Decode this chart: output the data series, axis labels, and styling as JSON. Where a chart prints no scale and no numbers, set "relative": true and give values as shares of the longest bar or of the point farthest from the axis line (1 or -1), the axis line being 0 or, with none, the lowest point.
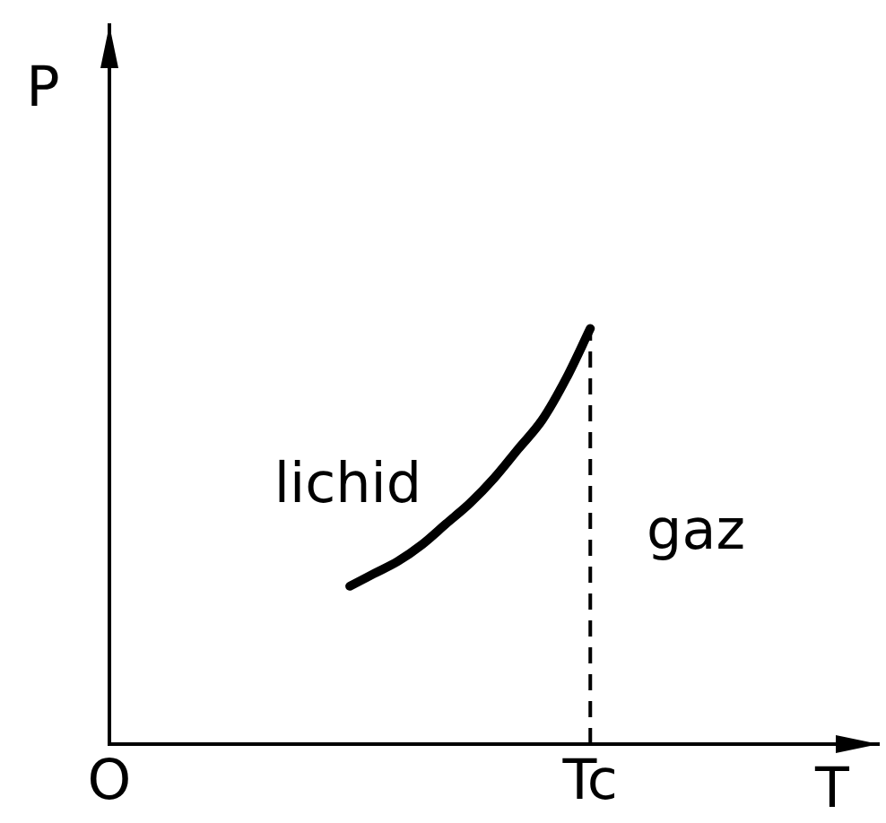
{
  "chart_data": {
    "type": "line",
    "relative": true,
    "xlabel": "T",
    "ylabel": "P",
    "categories": [
      "O",
      null,
      null,
      null,
      null,
      null,
      null,
      null,
      null,
      null,
      null,
      null,
      null,
      null,
      null,
      null,
      null,
      null,
      null,
      null,
      "Tc",
      null,
      null,
      null,
      null,
      null,
      null,
      null,
      null,
      null,
      null,
      null,
      null
    ],
    "series": [
      {
        "color": "#000000",
        "values": [
          null,
          null,
          null,
          null,
          null,
          null,
          null,
          null,
          null,
          null,
          0.38,
          0.41,
          0.44,
          0.48,
          0.53,
          0.58,
          0.64,
          0.71,
          0.78,
          0.88,
          1,
          null,
          null,
          null,
          null,
          null,
          null,
          null,
          null,
          null,
          null,
          null,
          null
        ]
      }
    ],
    "ref_lines": [
      {
        "axis": "x",
        "value": "Tc",
        "line_style": "dashed",
        "color": "#000000"
      }
    ],
    "annotations": [
      "lichid",
      "gaz"
    ],
    "marker": "none",
    "line_style": "solid",
    "grid": false,
    "legend": false
  }
}
